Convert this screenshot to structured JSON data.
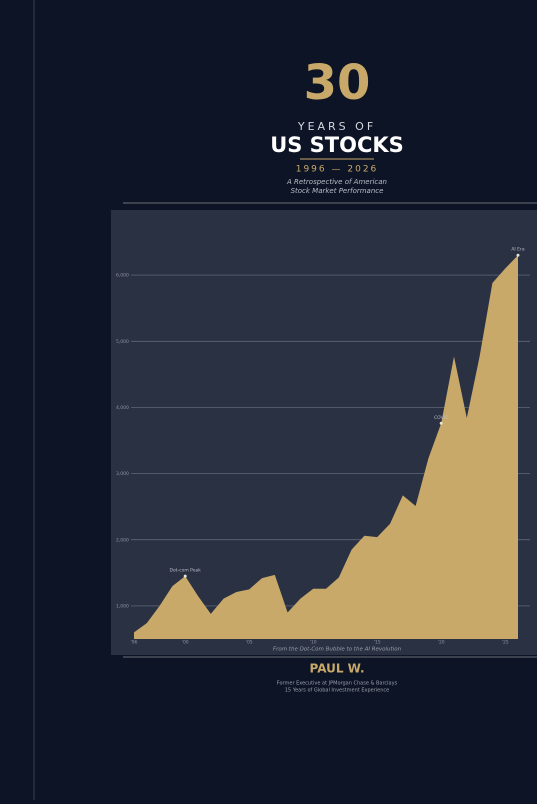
{
  "cover": {
    "number": "30",
    "kicker": "YEARS OF",
    "title": "US STOCKS",
    "years": "1996 — 2026",
    "subtitle_lines": [
      "A Retrospective of American",
      "Stock Market Performance"
    ],
    "author": "PAUL W.",
    "author_lines": [
      "Former Executive at JPMorgan Chase & Barclays",
      "15 Years of Global Investment Experience"
    ]
  },
  "chart_data": {
    "type": "area",
    "caption": "From the Dot-Com Bubble to the AI Revolution",
    "color": "#c8a96a",
    "grid": true,
    "x": [
      1996,
      1997,
      1998,
      1999,
      2000,
      2001,
      2002,
      2003,
      2004,
      2005,
      2006,
      2007,
      2008,
      2009,
      2010,
      2011,
      2012,
      2013,
      2014,
      2015,
      2016,
      2017,
      2018,
      2019,
      2020,
      2021,
      2022,
      2023,
      2024,
      2025,
      2026
    ],
    "values": [
      600,
      740,
      1000,
      1300,
      1450,
      1150,
      880,
      1110,
      1210,
      1250,
      1420,
      1470,
      900,
      1110,
      1260,
      1260,
      1430,
      1850,
      2060,
      2040,
      2240,
      2670,
      2510,
      3230,
      3760,
      4770,
      3840,
      4770,
      5880,
      6100,
      6300
    ],
    "xlim": [
      1996,
      2026
    ],
    "xticks": [
      {
        "value": 1996,
        "label": "'96"
      },
      {
        "value": 2000,
        "label": "'00"
      },
      {
        "value": 2005,
        "label": "'05"
      },
      {
        "value": 2010,
        "label": "'10"
      },
      {
        "value": 2015,
        "label": "'15"
      },
      {
        "value": 2020,
        "label": "'20"
      },
      {
        "value": 2025,
        "label": "'25"
      }
    ],
    "ylim": [
      500,
      6500
    ],
    "yticks": [
      {
        "value": 1000,
        "label": "1,000"
      },
      {
        "value": 2000,
        "label": "2,000"
      },
      {
        "value": 3000,
        "label": "3,000"
      },
      {
        "value": 4000,
        "label": "4,000"
      },
      {
        "value": 5000,
        "label": "5,000"
      },
      {
        "value": 6000,
        "label": "6,000"
      }
    ],
    "annotations": [
      {
        "text": "Dot-com Peak",
        "x": 2000,
        "y": 1450
      },
      {
        "text": "COVID",
        "x": 2020,
        "y": 3760
      },
      {
        "text": "AI Era",
        "x": 2026,
        "y": 6300
      }
    ]
  }
}
